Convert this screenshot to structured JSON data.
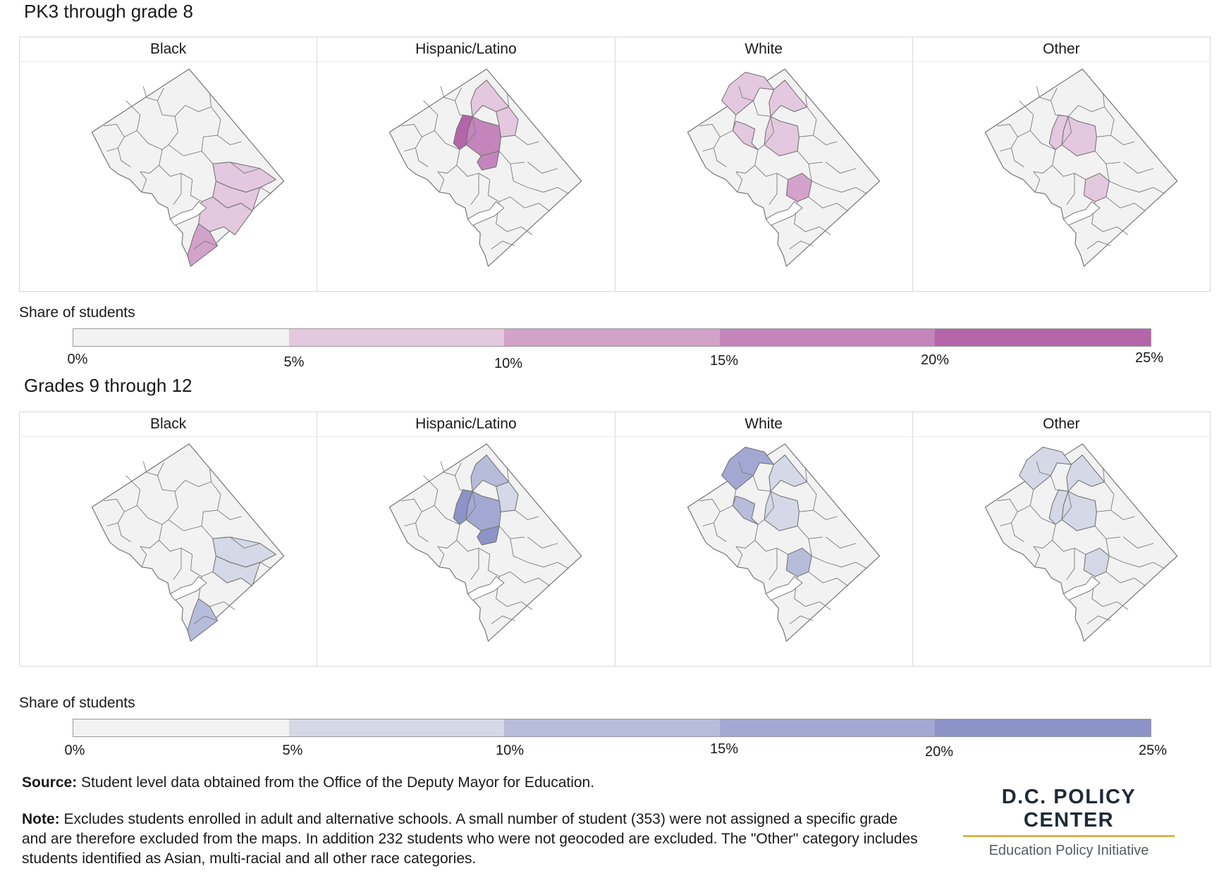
{
  "sections": [
    {
      "title": "PK3 through grade 8",
      "palette": [
        "#f2f2f2",
        "#e4c8df",
        "#d3a2cb",
        "#c385bb",
        "#b465aa"
      ],
      "panels": [
        {
          "label": "Black",
          "shaded": [
            {
              "region": "ward7-east",
              "level": 1
            },
            {
              "region": "ward8-north",
              "level": 1
            },
            {
              "region": "anacostia-east",
              "level": 1
            },
            {
              "region": "far-south-tip",
              "level": 2
            }
          ]
        },
        {
          "label": "Hispanic/Latino",
          "shaded": [
            {
              "region": "north-central",
              "level": 1
            },
            {
              "region": "columbia-heights",
              "level": 3
            },
            {
              "region": "mount-pleasant",
              "level": 4
            },
            {
              "region": "petworth",
              "level": 3
            },
            {
              "region": "brightwood",
              "level": 1
            }
          ]
        },
        {
          "label": "White",
          "shaded": [
            {
              "region": "chevy-chase",
              "level": 1
            },
            {
              "region": "georgetown",
              "level": 1
            },
            {
              "region": "north-central",
              "level": 1
            },
            {
              "region": "columbia-heights",
              "level": 1
            },
            {
              "region": "capitol-hill",
              "level": 2
            }
          ]
        },
        {
          "label": "Other",
          "shaded": [
            {
              "region": "columbia-heights",
              "level": 1
            },
            {
              "region": "mount-pleasant",
              "level": 1
            },
            {
              "region": "capitol-hill",
              "level": 1
            }
          ]
        }
      ],
      "legend": {
        "title": "Share of students",
        "ticks": [
          "0%",
          "5%",
          "10%",
          "15%",
          "20%",
          "25%"
        ]
      }
    },
    {
      "title": "Grades 9 through 12",
      "palette": [
        "#f2f2f2",
        "#d5d8e6",
        "#b8bcdb",
        "#a2a8d2",
        "#8c93c7"
      ],
      "panels": [
        {
          "label": "Black",
          "shaded": [
            {
              "region": "ward7-east",
              "level": 1
            },
            {
              "region": "ward8-north",
              "level": 1
            },
            {
              "region": "far-south-tip",
              "level": 2
            }
          ]
        },
        {
          "label": "Hispanic/Latino",
          "shaded": [
            {
              "region": "north-central",
              "level": 2
            },
            {
              "region": "columbia-heights",
              "level": 3
            },
            {
              "region": "mount-pleasant",
              "level": 4
            },
            {
              "region": "petworth",
              "level": 4
            },
            {
              "region": "brightwood",
              "level": 1
            }
          ]
        },
        {
          "label": "White",
          "shaded": [
            {
              "region": "chevy-chase",
              "level": 3
            },
            {
              "region": "georgetown",
              "level": 2
            },
            {
              "region": "north-central",
              "level": 1
            },
            {
              "region": "columbia-heights",
              "level": 1
            },
            {
              "region": "capitol-hill",
              "level": 2
            }
          ]
        },
        {
          "label": "Other",
          "shaded": [
            {
              "region": "chevy-chase",
              "level": 1
            },
            {
              "region": "north-central",
              "level": 1
            },
            {
              "region": "columbia-heights",
              "level": 1
            },
            {
              "region": "mount-pleasant",
              "level": 1
            },
            {
              "region": "capitol-hill",
              "level": 1
            }
          ]
        }
      ],
      "legend": {
        "title": "Share of students",
        "ticks": [
          "0%",
          "5%",
          "10%",
          "15%",
          "20%",
          "25%"
        ]
      }
    }
  ],
  "footer": {
    "source_label": "Source:",
    "source_text": "Student level data obtained from the Office of the Deputy Mayor for Education.",
    "note_label": "Note:",
    "note_text": "Excludes students enrolled in adult and alternative schools. A small number of student (353) were not assigned a specific grade and are therefore excluded from the maps. In addition 232 students who were not geocoded are excluded. The \"Other\" category includes students identified as Asian, multi-racial and all other race categories."
  },
  "logo": {
    "name": "D.C. POLICY CENTER",
    "subtitle": "Education Policy Initiative"
  }
}
